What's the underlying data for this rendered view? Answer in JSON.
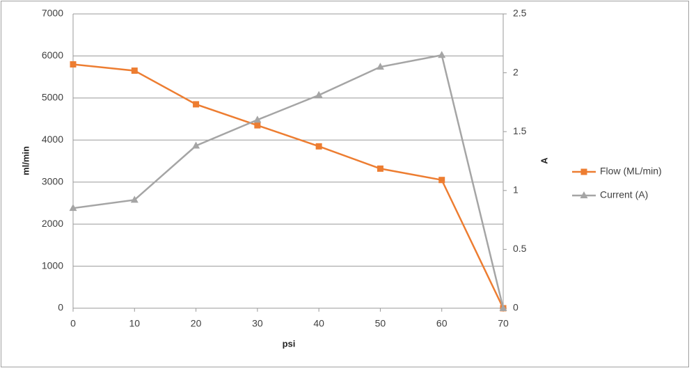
{
  "chart_data": {
    "type": "line",
    "x_label": "psi",
    "y_label": "ml/min",
    "y2_label": "A",
    "x": [
      0,
      10,
      20,
      30,
      40,
      50,
      60,
      70
    ],
    "xlim": [
      0,
      70
    ],
    "xticks": [
      0,
      10,
      20,
      30,
      40,
      50,
      60,
      70
    ],
    "ylim": [
      0,
      7000
    ],
    "yticks": [
      0,
      1000,
      2000,
      3000,
      4000,
      5000,
      6000,
      7000
    ],
    "y2lim": [
      0,
      2.5
    ],
    "y2ticks": [
      0,
      0.5,
      1,
      1.5,
      2,
      2.5
    ],
    "grid": true,
    "legend": "right",
    "series": [
      {
        "name": "Flow (ML/min)",
        "color": "#ed7d31",
        "marker": "square",
        "values": [
          5800,
          5650,
          4850,
          4350,
          3850,
          3320,
          3050,
          0
        ]
      },
      {
        "name": "Current (A)",
        "color": "#a5a5a5",
        "marker": "triangle",
        "axis": "y2",
        "values": [
          0.85,
          0.92,
          1.38,
          1.6,
          1.81,
          2.05,
          2.15,
          0
        ]
      }
    ]
  }
}
